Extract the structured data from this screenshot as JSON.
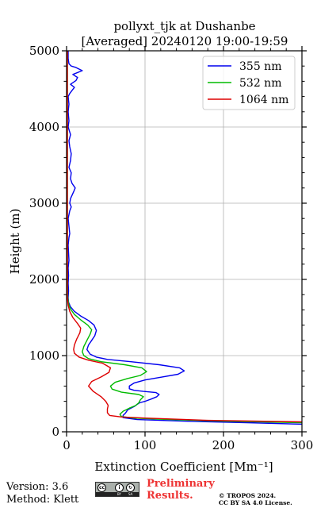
{
  "chart_data": {
    "type": "line",
    "title_line1": "pollyxt_tjk at Dushanbe",
    "title_line2": "[Averaged] 20240120 19:00-19:59",
    "xlabel": "Extinction Coefficient [Mm⁻¹]",
    "ylabel": "Height (m)",
    "xlim": [
      0,
      300
    ],
    "ylim": [
      0,
      5000
    ],
    "xticks": [
      0,
      100,
      200,
      300
    ],
    "yticks": [
      0,
      1000,
      2000,
      3000,
      4000,
      5000
    ],
    "grid": true,
    "legend_position": "top-right",
    "series": [
      {
        "name": "355 nm",
        "color": "#0000ee",
        "points": [
          [
            300,
            100
          ],
          [
            230,
            120
          ],
          [
            150,
            140
          ],
          [
            90,
            160
          ],
          [
            72,
            185
          ],
          [
            72,
            215
          ],
          [
            75,
            245
          ],
          [
            78,
            290
          ],
          [
            86,
            330
          ],
          [
            90,
            360
          ],
          [
            93,
            380
          ],
          [
            100,
            400
          ],
          [
            108,
            430
          ],
          [
            115,
            460
          ],
          [
            118,
            490
          ],
          [
            114,
            515
          ],
          [
            98,
            530
          ],
          [
            86,
            545
          ],
          [
            80,
            565
          ],
          [
            80,
            600
          ],
          [
            86,
            640
          ],
          [
            100,
            680
          ],
          [
            122,
            720
          ],
          [
            142,
            755
          ],
          [
            150,
            800
          ],
          [
            144,
            840
          ],
          [
            118,
            880
          ],
          [
            82,
            920
          ],
          [
            52,
            950
          ],
          [
            38,
            980
          ],
          [
            30,
            1020
          ],
          [
            26,
            1080
          ],
          [
            28,
            1140
          ],
          [
            32,
            1200
          ],
          [
            36,
            1260
          ],
          [
            38,
            1330
          ],
          [
            35,
            1400
          ],
          [
            28,
            1460
          ],
          [
            18,
            1520
          ],
          [
            10,
            1580
          ],
          [
            5,
            1640
          ],
          [
            2.5,
            1700
          ],
          [
            2,
            1760
          ],
          [
            2.5,
            1850
          ],
          [
            2,
            1950
          ],
          [
            2.5,
            2050
          ],
          [
            2,
            2150
          ],
          [
            3,
            2250
          ],
          [
            2.5,
            2350
          ],
          [
            2,
            2450
          ],
          [
            3,
            2550
          ],
          [
            4,
            2600
          ],
          [
            3,
            2700
          ],
          [
            2,
            2800
          ],
          [
            4,
            2900
          ],
          [
            6,
            2950
          ],
          [
            4,
            3000
          ],
          [
            5,
            3060
          ],
          [
            9,
            3150
          ],
          [
            11,
            3200
          ],
          [
            7,
            3260
          ],
          [
            5,
            3320
          ],
          [
            6,
            3400
          ],
          [
            3,
            3470
          ],
          [
            5,
            3560
          ],
          [
            6,
            3650
          ],
          [
            4,
            3740
          ],
          [
            3,
            3820
          ],
          [
            5,
            3900
          ],
          [
            2,
            4000
          ],
          [
            3,
            4080
          ],
          [
            2,
            4200
          ],
          [
            3,
            4300
          ],
          [
            2,
            4400
          ],
          [
            4,
            4440
          ],
          [
            7,
            4480
          ],
          [
            10,
            4520
          ],
          [
            5,
            4560
          ],
          [
            12,
            4610
          ],
          [
            14,
            4650
          ],
          [
            8,
            4690
          ],
          [
            20,
            4740
          ],
          [
            12,
            4780
          ],
          [
            6,
            4800
          ],
          [
            3,
            4830
          ],
          [
            2,
            4900
          ],
          [
            2,
            5000
          ]
        ]
      },
      {
        "name": "532 nm",
        "color": "#00bb00",
        "points": [
          [
            300,
            120
          ],
          [
            200,
            140
          ],
          [
            120,
            165
          ],
          [
            85,
            180
          ],
          [
            70,
            200
          ],
          [
            68,
            230
          ],
          [
            72,
            270
          ],
          [
            80,
            310
          ],
          [
            88,
            345
          ],
          [
            92,
            380
          ],
          [
            94,
            420
          ],
          [
            98,
            460
          ],
          [
            92,
            490
          ],
          [
            70,
            520
          ],
          [
            58,
            560
          ],
          [
            56,
            600
          ],
          [
            62,
            650
          ],
          [
            78,
            700
          ],
          [
            94,
            740
          ],
          [
            102,
            790
          ],
          [
            96,
            840
          ],
          [
            74,
            880
          ],
          [
            44,
            920
          ],
          [
            28,
            960
          ],
          [
            22,
            1000
          ],
          [
            20,
            1050
          ],
          [
            22,
            1120
          ],
          [
            26,
            1200
          ],
          [
            30,
            1280
          ],
          [
            32,
            1340
          ],
          [
            27,
            1400
          ],
          [
            18,
            1470
          ],
          [
            10,
            1540
          ],
          [
            5,
            1610
          ],
          [
            2.5,
            1680
          ],
          [
            1.5,
            1760
          ],
          [
            1.2,
            1900
          ],
          [
            1,
            2200
          ],
          [
            1,
            2600
          ],
          [
            1,
            3000
          ],
          [
            1,
            3500
          ],
          [
            1,
            4000
          ],
          [
            1,
            4500
          ],
          [
            1,
            5000
          ]
        ]
      },
      {
        "name": "1064 nm",
        "color": "#dd0000",
        "points": [
          [
            300,
            130
          ],
          [
            180,
            150
          ],
          [
            100,
            180
          ],
          [
            70,
            195
          ],
          [
            55,
            215
          ],
          [
            52,
            250
          ],
          [
            52,
            300
          ],
          [
            53,
            345
          ],
          [
            50,
            400
          ],
          [
            44,
            460
          ],
          [
            34,
            530
          ],
          [
            28,
            600
          ],
          [
            32,
            660
          ],
          [
            44,
            720
          ],
          [
            54,
            780
          ],
          [
            56,
            840
          ],
          [
            46,
            900
          ],
          [
            28,
            940
          ],
          [
            16,
            980
          ],
          [
            10,
            1030
          ],
          [
            9,
            1080
          ],
          [
            10,
            1140
          ],
          [
            13,
            1220
          ],
          [
            17,
            1300
          ],
          [
            18,
            1360
          ],
          [
            14,
            1420
          ],
          [
            8,
            1500
          ],
          [
            4,
            1580
          ],
          [
            2,
            1660
          ],
          [
            1,
            1760
          ],
          [
            1,
            2000
          ],
          [
            1,
            2500
          ],
          [
            1,
            3000
          ],
          [
            1,
            3500
          ],
          [
            1,
            4000
          ],
          [
            1,
            4500
          ],
          [
            1,
            5000
          ]
        ]
      }
    ]
  },
  "footer": {
    "version": "Version: 3.6",
    "method": "Method: Klett",
    "preliminary_line1": "Preliminary",
    "preliminary_line2": "Results.",
    "copyright_line1": "© TROPOS 2024.",
    "copyright_line2": "CC BY SA 4.0 License."
  }
}
